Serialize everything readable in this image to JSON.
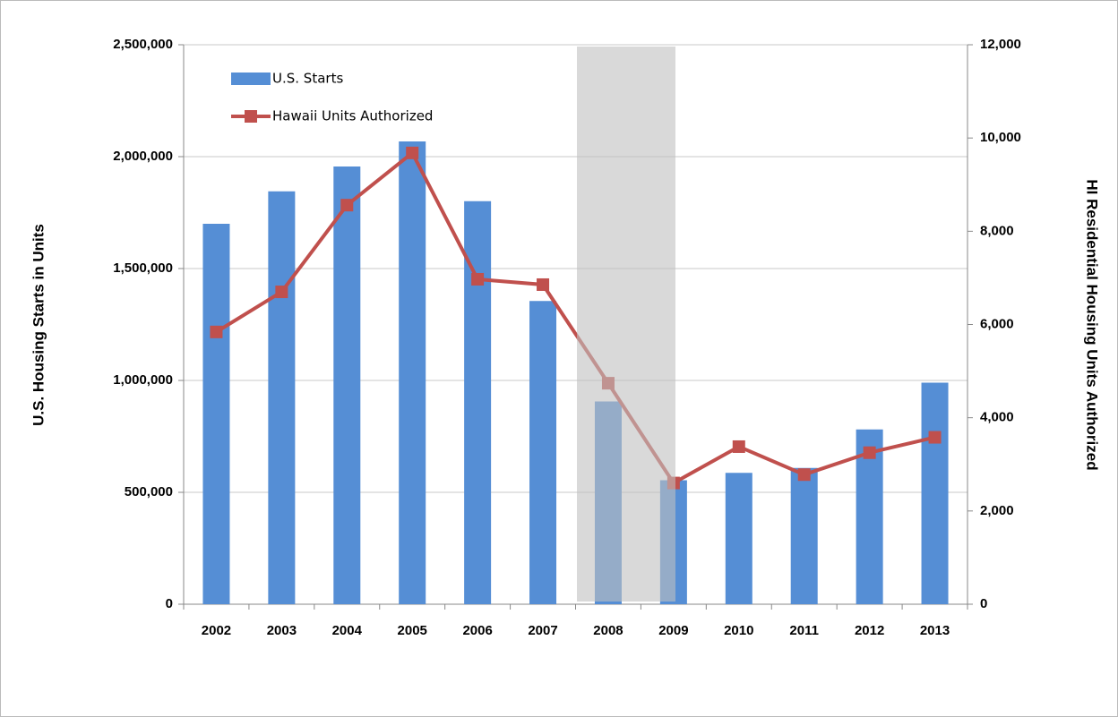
{
  "chart_data": {
    "type": "bar-line",
    "categories": [
      "2002",
      "2003",
      "2004",
      "2005",
      "2006",
      "2007",
      "2008",
      "2009",
      "2010",
      "2011",
      "2012",
      "2013"
    ],
    "series": [
      {
        "name": "U.S. Starts",
        "type": "bar",
        "color": "#558ed5",
        "values": [
          1700000,
          1845000,
          1956000,
          2068000,
          1801000,
          1355000,
          906000,
          554000,
          587000,
          609000,
          781000,
          990000
        ]
      },
      {
        "name": "Hawaii Units Authorized",
        "type": "line",
        "axis": "y2",
        "color": "#c0504d",
        "values": [
          5840,
          6700,
          8560,
          9680,
          6970,
          6855,
          4740,
          2600,
          3380,
          2780,
          3250,
          3580
        ]
      }
    ],
    "y_label": "U.S. Housing Starts in Units",
    "y2_label": "HI Residential Housing Units Authorized",
    "ylim": [
      0,
      2500000
    ],
    "yticks": [
      {
        "value": 0,
        "label": "0"
      },
      {
        "value": 500000,
        "label": "500,000"
      },
      {
        "value": 1000000,
        "label": "1,000,000"
      },
      {
        "value": 1500000,
        "label": "1,500,000"
      },
      {
        "value": 2000000,
        "label": "2,000,000"
      },
      {
        "value": 2500000,
        "label": "2,500,000"
      }
    ],
    "y2lim": [
      0,
      12000
    ],
    "y2ticks": [
      {
        "value": 0,
        "label": "0"
      },
      {
        "value": 2000,
        "label": "2,000"
      },
      {
        "value": 4000,
        "label": "4,000"
      },
      {
        "value": 6000,
        "label": "6,000"
      },
      {
        "value": 8000,
        "label": "8,000"
      },
      {
        "value": 10000,
        "label": "10,000"
      },
      {
        "value": 12000,
        "label": "12,000"
      }
    ],
    "grid": true
  }
}
